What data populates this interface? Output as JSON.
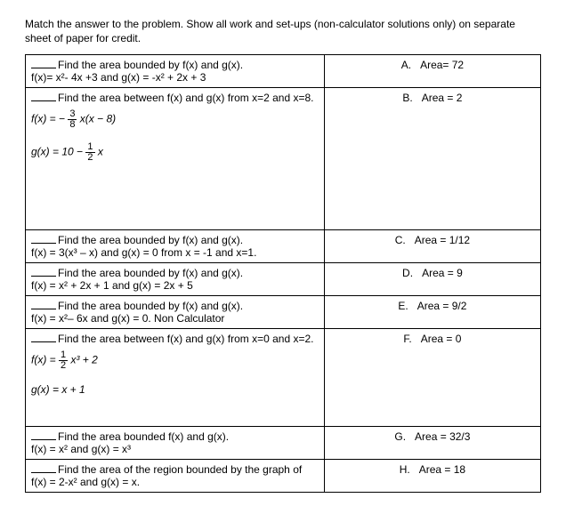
{
  "instructions": "Match the answer to the problem.  Show all work and set-ups (non-calculator solutions only) on separate sheet of paper for credit.",
  "rows": [
    {
      "prompt_lead": "Find the area bounded by f(x) and g(x).",
      "prompt_body": "f(x)= x²- 4x +3 and  g(x) = -x² + 2x + 3",
      "answer_letter": "A.",
      "answer_text": "Area= 72",
      "has_frac_eq": false,
      "height_class": ""
    },
    {
      "prompt_lead": "Find the area between f(x) and g(x) from x=2 and x=8.",
      "prompt_body": "",
      "answer_letter": "B.",
      "answer_text": "Area = 2",
      "has_frac_eq": true,
      "frac_html": "f(x) = − <span class='frac'><span class='num'>3</span><span class='den'>8</span></span> x(x − 8)<br><br>g(x) = 10 − <span class='frac'><span class='num'>1</span><span class='den'>2</span></span> x",
      "height_class": "tall"
    },
    {
      "prompt_lead": "Find the area bounded by f(x) and g(x).",
      "prompt_body": "f(x) = 3(x³ – x) and g(x) = 0 from x = -1 and x=1.",
      "answer_letter": "C.",
      "answer_text": "Area = 1/12",
      "has_frac_eq": false,
      "height_class": ""
    },
    {
      "prompt_lead": "Find the area bounded by f(x) and g(x).",
      "prompt_body": "f(x) = x² + 2x + 1 and g(x) = 2x + 5",
      "answer_letter": "D.",
      "answer_text": "Area = 9",
      "has_frac_eq": false,
      "height_class": ""
    },
    {
      "prompt_lead": "Find the area bounded by f(x) and g(x).",
      "prompt_body": "f(x) = x²– 6x  and g(x) = 0. Non Calculator",
      "answer_letter": "E.",
      "answer_text": "Area = 9/2",
      "has_frac_eq": false,
      "height_class": ""
    },
    {
      "prompt_lead": "Find the area between f(x) and g(x) from x=0 and x=2.",
      "prompt_body": "",
      "answer_letter": "F.",
      "answer_text": "Area = 0",
      "has_frac_eq": true,
      "frac_html": "f(x) = <span class='frac'><span class='num'>1</span><span class='den'>2</span></span> x³ + 2<br><br>g(x) = x + 1",
      "height_class": "med"
    },
    {
      "prompt_lead": "Find the area bounded f(x) and g(x).",
      "prompt_body": "f(x) = x² and g(x) = x³",
      "answer_letter": "G.",
      "answer_text": "Area = 32/3",
      "has_frac_eq": false,
      "height_class": ""
    },
    {
      "prompt_lead": "Find the area of the region bounded by the graph of f(x) = 2-x² and g(x) = x.",
      "prompt_body": "",
      "answer_letter": "H.",
      "answer_text": "Area = 18",
      "has_frac_eq": false,
      "height_class": ""
    }
  ]
}
